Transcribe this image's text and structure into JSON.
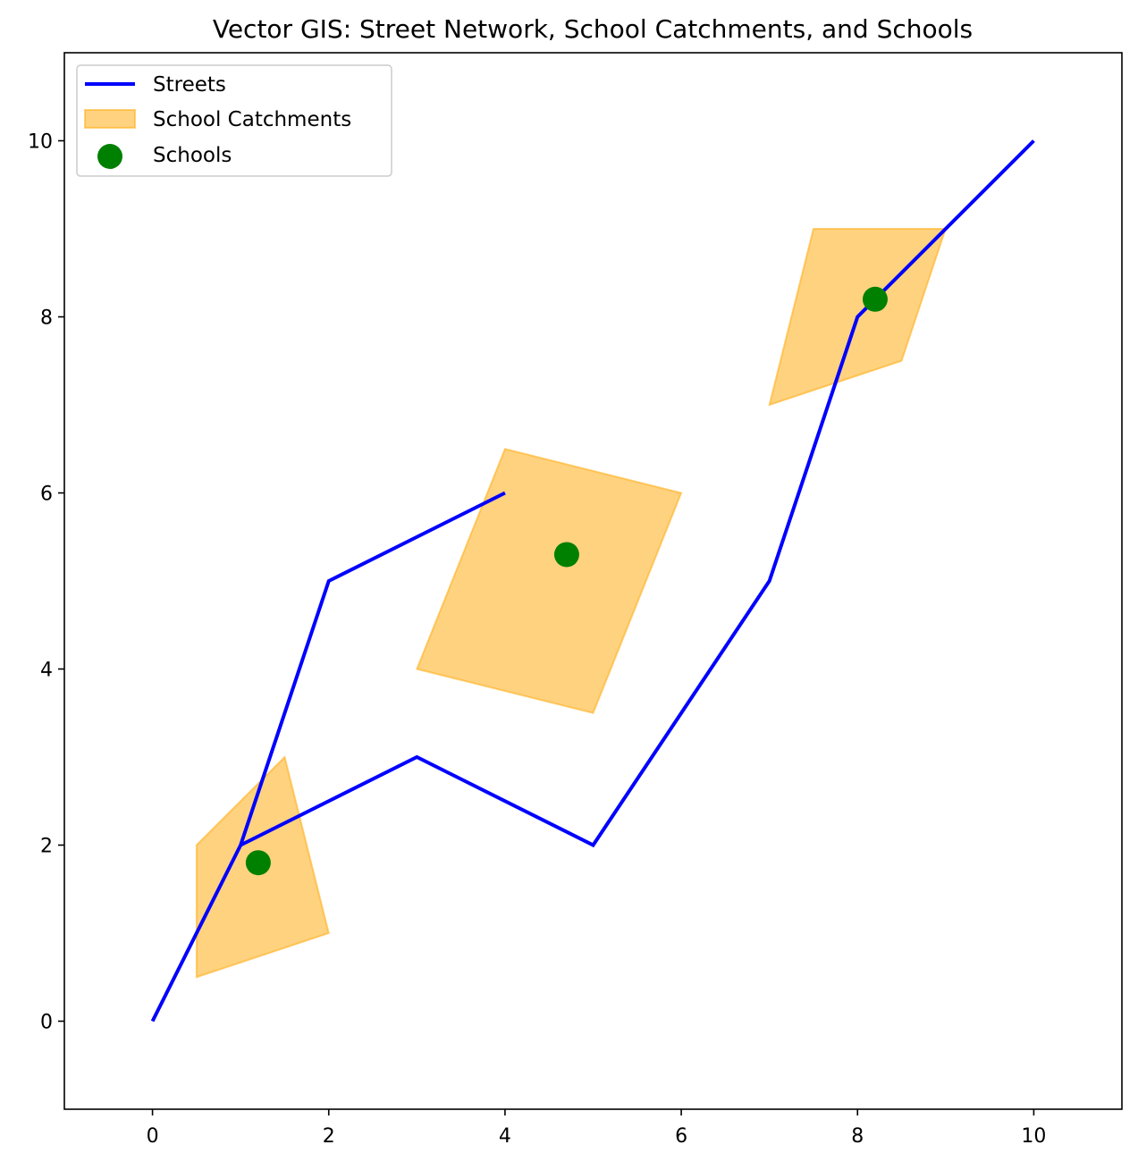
{
  "chart_data": {
    "type": "map",
    "title": "Vector GIS: Street Network, School Catchments, and Schools",
    "xlabel": "",
    "ylabel": "",
    "xlim": [
      -1,
      11
    ],
    "ylim": [
      -1,
      11
    ],
    "xticks": [
      0,
      2,
      4,
      6,
      8,
      10
    ],
    "yticks": [
      0,
      2,
      4,
      6,
      8,
      10
    ],
    "grid": false,
    "legend": {
      "placement": "top-left",
      "entries": [
        {
          "label": "Streets",
          "kind": "line",
          "color": "#0000ff"
        },
        {
          "label": "School Catchments",
          "kind": "patch",
          "color": "#ffa500"
        },
        {
          "label": "Schools",
          "kind": "marker",
          "color": "#008000"
        }
      ]
    },
    "streets": {
      "name": "Streets",
      "color": "#0000ff",
      "lines": [
        [
          [
            0,
            0
          ],
          [
            1,
            2
          ],
          [
            2,
            5
          ],
          [
            4,
            6
          ]
        ],
        [
          [
            1,
            2
          ],
          [
            3,
            3
          ],
          [
            5,
            2
          ],
          [
            7,
            5
          ],
          [
            8,
            8
          ],
          [
            10,
            10
          ]
        ]
      ]
    },
    "catchments": {
      "name": "School Catchments",
      "color": "#ffa500",
      "opacity": 0.5,
      "polygons": [
        [
          [
            0.5,
            0.5
          ],
          [
            2,
            1
          ],
          [
            1.5,
            3
          ],
          [
            0.5,
            2
          ]
        ],
        [
          [
            3,
            4
          ],
          [
            5,
            3.5
          ],
          [
            6,
            6
          ],
          [
            4,
            6.5
          ]
        ],
        [
          [
            7,
            7
          ],
          [
            8.5,
            7.5
          ],
          [
            9,
            9
          ],
          [
            7.5,
            9
          ]
        ]
      ]
    },
    "schools": {
      "name": "Schools",
      "color": "#008000",
      "points": [
        [
          1.2,
          1.8
        ],
        [
          4.7,
          5.3
        ],
        [
          8.2,
          8.2
        ]
      ]
    }
  }
}
